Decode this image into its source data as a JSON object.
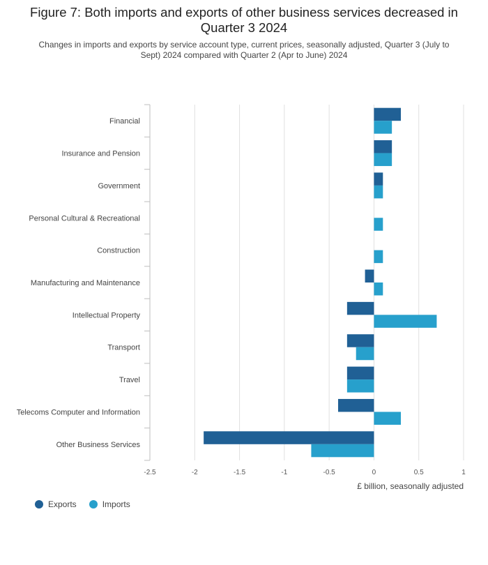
{
  "title": "Figure 7: Both imports and exports of other business services decreased in Quarter 3 2024",
  "subtitle": "Changes in imports and exports by service account type, current prices, seasonally adjusted, Quarter 3 (July to Sept) 2024 compared with Quarter 2 (Apr to June) 2024",
  "colors": {
    "exports": "#206095",
    "imports": "#27A0CC",
    "grid": "#e0e0e0",
    "axis": "#bebebe"
  },
  "legend": {
    "exports": "Exports",
    "imports": "Imports"
  },
  "chart_data": {
    "type": "bar",
    "orientation": "horizontal",
    "categories": [
      "Financial",
      "Insurance and Pension",
      "Government",
      "Personal Cultural & Recreational",
      "Construction",
      "Manufacturing and Maintenance",
      "Intellectual Property",
      "Transport",
      "Travel",
      "Telecoms Computer and Information",
      "Other Business Services"
    ],
    "series": [
      {
        "name": "Exports",
        "values": [
          0.3,
          0.2,
          0.1,
          0.0,
          0.0,
          -0.1,
          -0.3,
          -0.3,
          -0.3,
          -0.4,
          -1.9
        ]
      },
      {
        "name": "Imports",
        "values": [
          0.2,
          0.2,
          0.1,
          0.1,
          0.1,
          0.1,
          0.7,
          -0.2,
          -0.3,
          0.3,
          -0.7
        ]
      }
    ],
    "xlim": [
      -2.5,
      1
    ],
    "xticks": [
      -2.5,
      -2,
      -1.5,
      -1,
      -0.5,
      0,
      0.5,
      1
    ],
    "xtick_labels": [
      "-2.5",
      "-2",
      "-1.5",
      "-1",
      "-0.5",
      "0",
      "0.5",
      "1"
    ],
    "xlabel": "£ billion, seasonally adjusted",
    "ylabel": "",
    "grid": true,
    "legend_position": "bottom-left"
  }
}
